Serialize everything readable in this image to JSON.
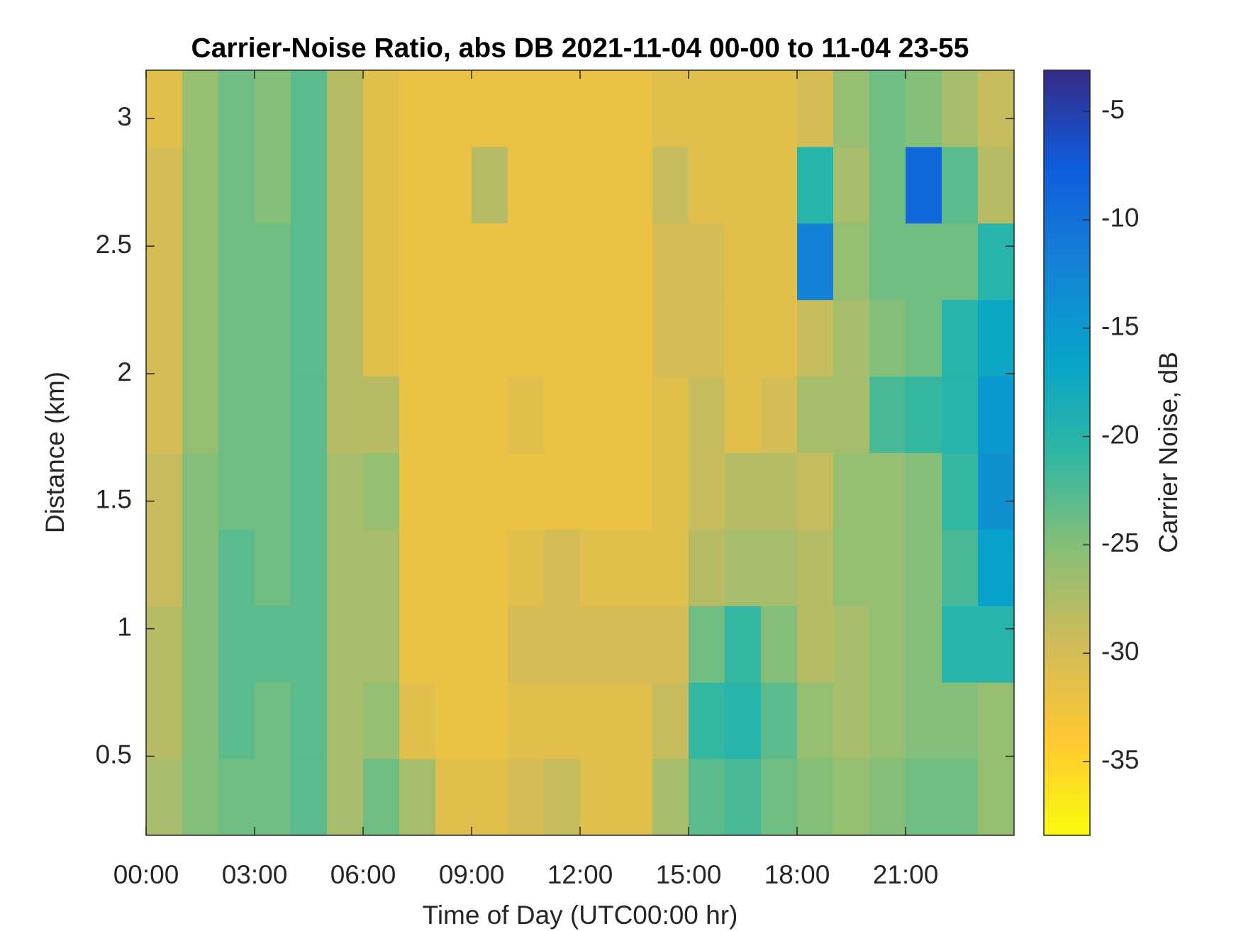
{
  "chart_data": {
    "type": "heatmap",
    "title": "Carrier-Noise Ratio, abs DB 2021-11-04 00-00 to 11-04 23-55",
    "x_label": "Time of Day (UTC00:00 hr)",
    "y_label": "Distance (km)",
    "colorbar_label": "Carrier Noise, dB",
    "colormap": "parula",
    "colormap_reversed": true,
    "x": [
      0.5,
      1.5,
      2.5,
      3.5,
      4.5,
      5.5,
      6.5,
      7.5,
      8.5,
      9.5,
      10.5,
      11.5,
      12.5,
      13.5,
      14.5,
      15.5,
      16.5,
      17.5,
      18.5,
      19.5,
      20.5,
      21.5,
      22.5,
      23.5
    ],
    "y": [
      0.34,
      0.64,
      0.94,
      1.24,
      1.54,
      1.84,
      2.14,
      2.44,
      2.74,
      3.04
    ],
    "values": [
      [
        -27,
        -25,
        -24,
        -24,
        -23,
        -27,
        -24,
        -27,
        -31,
        -31,
        -30,
        -29,
        -31,
        -31,
        -27,
        -23,
        -22,
        -24,
        -25,
        -26,
        -25,
        -24,
        -24,
        -26
      ],
      [
        -28,
        -25,
        -23,
        -24,
        -23,
        -27,
        -26,
        -31,
        -32,
        -32,
        -31,
        -31,
        -31,
        -31,
        -29,
        -21,
        -20,
        -23,
        -26,
        -27,
        -26,
        -25,
        -25,
        -26
      ],
      [
        -28,
        -25,
        -23,
        -23,
        -23,
        -27,
        -27,
        -32,
        -32,
        -32,
        -30,
        -30,
        -30,
        -30,
        -30,
        -24,
        -21,
        -25,
        -28,
        -27,
        -26,
        -25,
        -20,
        -20
      ],
      [
        -29,
        -25,
        -23,
        -24,
        -23,
        -27,
        -27,
        -32,
        -32,
        -32,
        -31,
        -30,
        -31,
        -31,
        -31,
        -28,
        -27,
        -27,
        -28,
        -26,
        -26,
        -25,
        -22,
        -16
      ],
      [
        -29,
        -25,
        -24,
        -24,
        -23,
        -27,
        -26,
        -32,
        -32,
        -32,
        -32,
        -32,
        -32,
        -32,
        -31,
        -29,
        -28,
        -28,
        -29,
        -26,
        -26,
        -25,
        -21,
        -14
      ],
      [
        -30,
        -26,
        -24,
        -24,
        -23,
        -28,
        -28,
        -32,
        -32,
        -32,
        -31,
        -32,
        -32,
        -32,
        -31,
        -29,
        -31,
        -30,
        -27,
        -27,
        -22,
        -21,
        -20,
        -15
      ],
      [
        -30,
        -26,
        -24,
        -24,
        -23,
        -28,
        -31,
        -32,
        -32,
        -32,
        -32,
        -32,
        -32,
        -32,
        -30,
        -30,
        -31,
        -31,
        -29,
        -27,
        -25,
        -24,
        -20,
        -17
      ],
      [
        -30,
        -26,
        -24,
        -24,
        -23,
        -28,
        -31,
        -32,
        -32,
        -32,
        -32,
        -32,
        -32,
        -32,
        -30,
        -30,
        -31,
        -31,
        -12,
        -26,
        -24,
        -24,
        -24,
        -20
      ],
      [
        -30,
        -26,
        -24,
        -25,
        -23,
        -28,
        -31,
        -32,
        -32,
        -28,
        -32,
        -32,
        -32,
        -32,
        -29,
        -31,
        -31,
        -31,
        -20,
        -27,
        -24,
        -9,
        -23,
        -28
      ],
      [
        -31,
        -26,
        -24,
        -25,
        -23,
        -28,
        -31,
        -32,
        -32,
        -32,
        -32,
        -32,
        -32,
        -32,
        -31,
        -31,
        -31,
        -31,
        -30,
        -26,
        -24,
        -25,
        -27,
        -29
      ]
    ],
    "xlim": [
      0,
      24
    ],
    "ylim": [
      0.19,
      3.19
    ],
    "clim": [
      -38.4,
      -3.1
    ],
    "xticks": [
      {
        "value": 0,
        "label": "00:00"
      },
      {
        "value": 3,
        "label": "03:00"
      },
      {
        "value": 6,
        "label": "06:00"
      },
      {
        "value": 9,
        "label": "09:00"
      },
      {
        "value": 12,
        "label": "12:00"
      },
      {
        "value": 15,
        "label": "15:00"
      },
      {
        "value": 18,
        "label": "18:00"
      },
      {
        "value": 21,
        "label": "21:00"
      }
    ],
    "yticks": [
      0.5,
      1,
      1.5,
      2,
      2.5,
      3
    ],
    "cticks": [
      -35,
      -30,
      -25,
      -20,
      -15,
      -10,
      -5
    ]
  }
}
